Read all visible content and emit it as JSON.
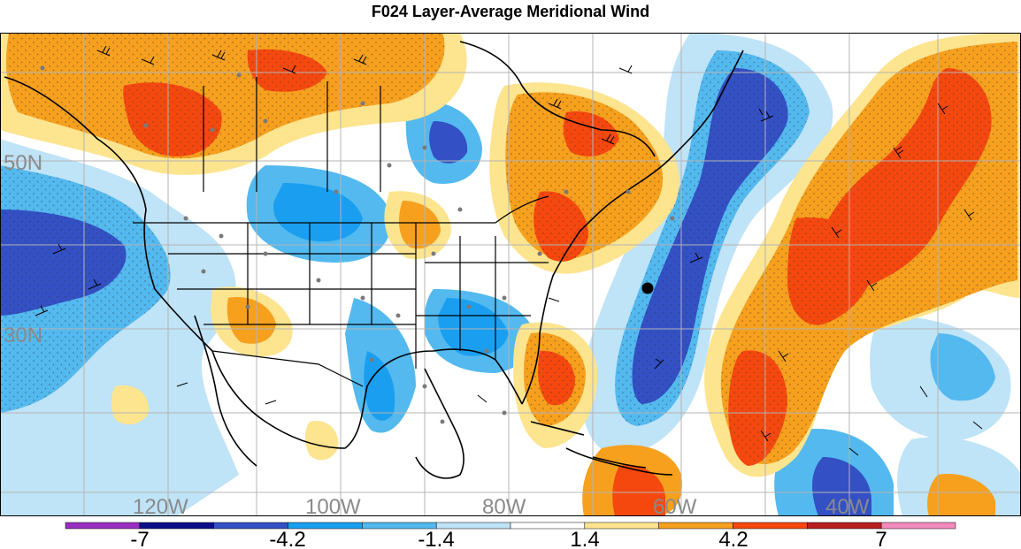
{
  "title": "F024 Layer-Average Meridional Wind",
  "map": {
    "lat_labels": [
      "50N",
      "30N"
    ],
    "lon_labels": [
      "120W",
      "100W",
      "80W",
      "60W",
      "40W"
    ],
    "gridline_color": "#b4b4b4",
    "label_color": "#8a8a8a",
    "land_border_color": "#000000"
  },
  "colorbar": {
    "tick_labels": [
      "-7",
      "-4.2",
      "-1.4",
      "1.4",
      "4.2",
      "7"
    ],
    "bins": [
      {
        "from": -8.4,
        "to": -7.0,
        "color": "#9a2fc2"
      },
      {
        "from": -7.0,
        "to": -5.6,
        "color": "#0b0f8a"
      },
      {
        "from": -5.6,
        "to": -4.2,
        "color": "#3350c4"
      },
      {
        "from": -4.2,
        "to": -2.8,
        "color": "#1a9ff0"
      },
      {
        "from": -2.8,
        "to": -1.4,
        "color": "#53b9ef"
      },
      {
        "from": -1.4,
        "to": 0.0,
        "color": "#bfe3f7"
      },
      {
        "from": 0.0,
        "to": 1.4,
        "color": "#ffffff"
      },
      {
        "from": 1.4,
        "to": 2.8,
        "color": "#fde48f"
      },
      {
        "from": 2.8,
        "to": 4.2,
        "color": "#f6a01e"
      },
      {
        "from": 4.2,
        "to": 5.6,
        "color": "#f5480f"
      },
      {
        "from": 5.6,
        "to": 7.0,
        "color": "#b81f1f"
      },
      {
        "from": 7.0,
        "to": 8.4,
        "color": "#f48bbf"
      }
    ]
  }
}
